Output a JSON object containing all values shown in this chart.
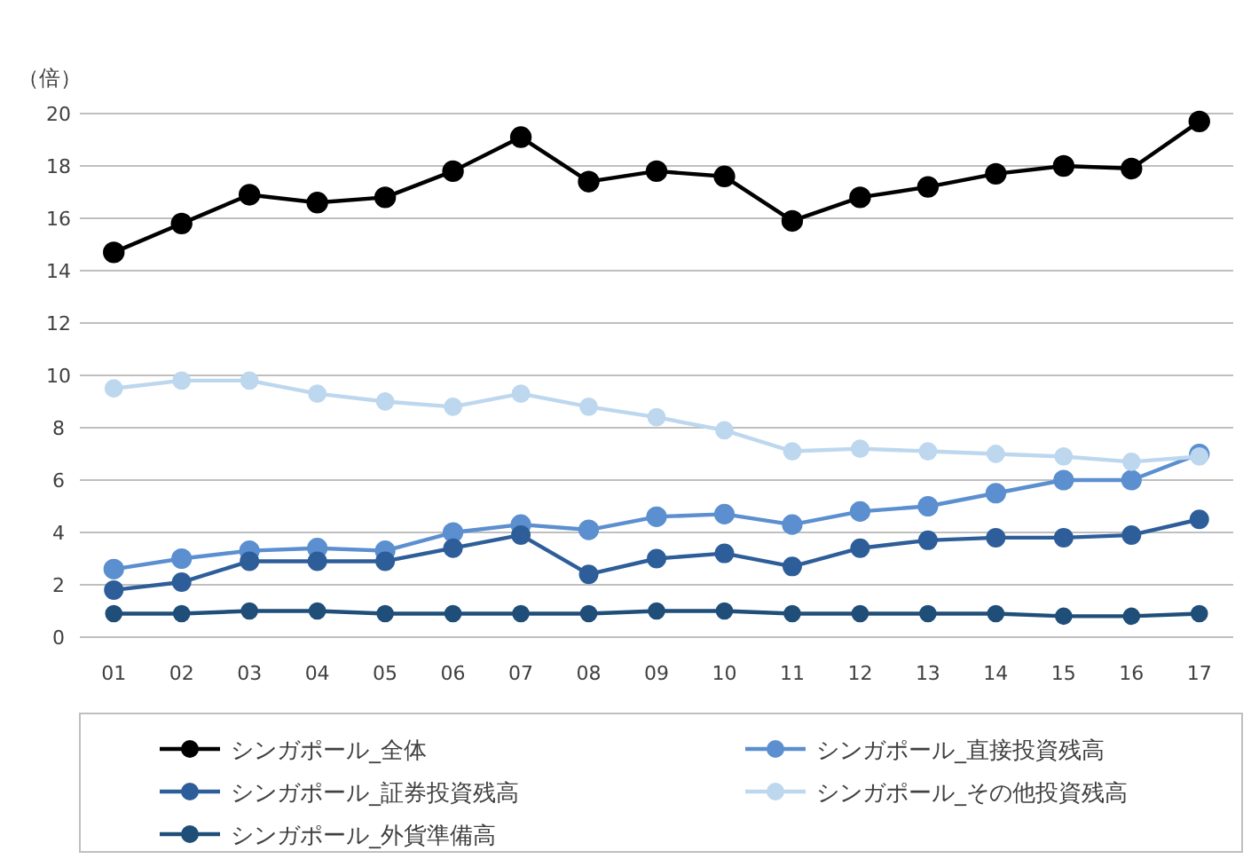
{
  "chart_data": {
    "type": "line",
    "ylabel": "（倍）",
    "categories": [
      "01",
      "02",
      "03",
      "04",
      "05",
      "06",
      "07",
      "08",
      "09",
      "10",
      "11",
      "12",
      "13",
      "14",
      "15",
      "16",
      "17"
    ],
    "series": [
      {
        "name": "シンガポール_全体",
        "color": "#000000",
        "values": [
          14.7,
          15.8,
          16.9,
          16.6,
          16.8,
          17.8,
          19.1,
          17.4,
          17.8,
          17.6,
          15.9,
          16.8,
          17.2,
          17.7,
          18.0,
          17.9,
          19.7
        ]
      },
      {
        "name": "シンガポール_直接投資残高",
        "color": "#5b8fd0",
        "values": [
          2.6,
          3.0,
          3.3,
          3.4,
          3.3,
          4.0,
          4.3,
          4.1,
          4.6,
          4.7,
          4.3,
          4.8,
          5.0,
          5.5,
          6.0,
          6.0,
          7.0
        ]
      },
      {
        "name": "シンガポール_証券投資残高",
        "color": "#2e5e99",
        "values": [
          1.8,
          2.1,
          2.9,
          2.9,
          2.9,
          3.4,
          3.9,
          2.4,
          3.0,
          3.2,
          2.7,
          3.4,
          3.7,
          3.8,
          3.8,
          3.9,
          4.5
        ]
      },
      {
        "name": "シンガポール_その他投資残高",
        "color": "#bdd7ee",
        "values": [
          9.5,
          9.8,
          9.8,
          9.3,
          9.0,
          8.8,
          9.3,
          8.8,
          8.4,
          7.9,
          7.1,
          7.2,
          7.1,
          7.0,
          6.9,
          6.7,
          6.9
        ]
      },
      {
        "name": "シンガポール_外貨準備高",
        "color": "#1f4e79",
        "values": [
          0.9,
          0.9,
          1.0,
          1.0,
          0.9,
          0.9,
          0.9,
          0.9,
          1.0,
          1.0,
          0.9,
          0.9,
          0.9,
          0.9,
          0.8,
          0.8,
          0.9
        ]
      }
    ],
    "ylim": [
      0,
      20
    ],
    "yticks": [
      0,
      2,
      4,
      6,
      8,
      10,
      12,
      14,
      16,
      18,
      20
    ],
    "grid": "y",
    "legend": "bottom",
    "marker": "circle",
    "line_style": "solid"
  }
}
